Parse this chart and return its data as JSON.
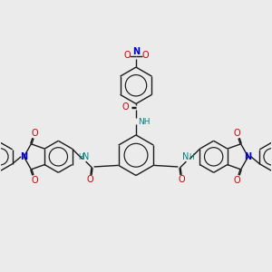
{
  "bg_color": "#ebebeb",
  "bond_color": "#1a1a1a",
  "N_color": "#0000cc",
  "O_color": "#cc0000",
  "NH_color": "#008080",
  "lw": 1.0,
  "dbo": 0.012,
  "xlim": [
    -2.8,
    2.8
  ],
  "ylim": [
    -1.6,
    2.4
  ]
}
